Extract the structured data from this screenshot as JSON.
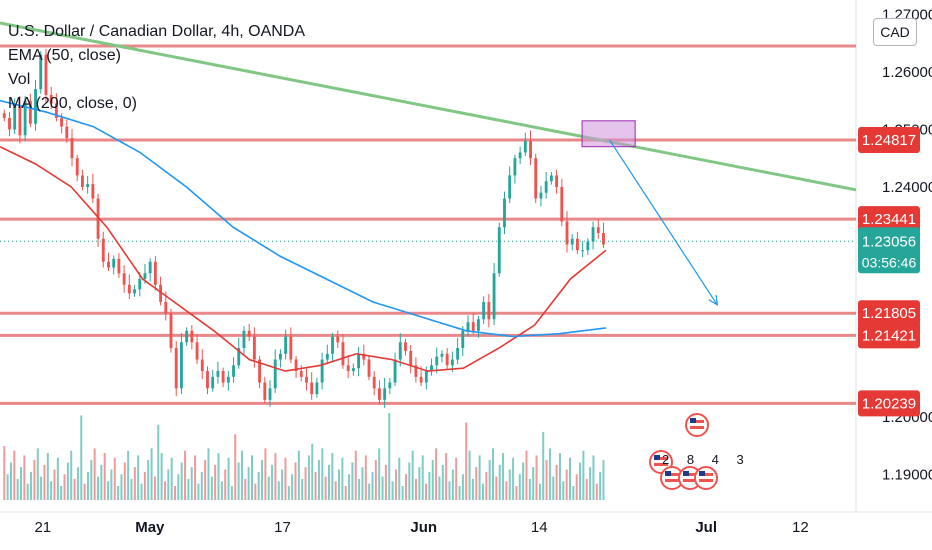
{
  "header": {
    "title": "U.S. Dollar / Canadian Dollar, 4h, OANDA",
    "ema_label": "EMA (50, close)",
    "vol_label": "Vol",
    "ma_label": "MA (200, close, 0)"
  },
  "currency_button": "CAD",
  "events_label": "2 8 4 3",
  "colors": {
    "up": "#26a69a",
    "down": "#ef5350",
    "ema": "#e53935",
    "ma": "#2196f3",
    "trendline": "#81c784",
    "level": "#e57373",
    "last_price": "#26a69a",
    "zone": "#ce93d8"
  },
  "chart_data": {
    "type": "candlestick",
    "ylim": [
      1.1835,
      1.2725
    ],
    "y_ticks": [
      "1.27000",
      "1.26000",
      "1.25000",
      "1.24000",
      "1.20000",
      "1.19000"
    ],
    "x_ticks": [
      {
        "label": "21",
        "bold": false
      },
      {
        "label": "May",
        "bold": true
      },
      {
        "label": "17",
        "bold": false
      },
      {
        "label": "Jun",
        "bold": true
      },
      {
        "label": "14",
        "bold": false
      },
      {
        "label": "Jul",
        "bold": true
      },
      {
        "label": "12",
        "bold": false
      }
    ],
    "horizontal_levels": [
      {
        "value": 1.2645,
        "label": ""
      },
      {
        "value": 1.24817,
        "label": "1.24817"
      },
      {
        "value": 1.23441,
        "label": "1.23441"
      },
      {
        "value": 1.21805,
        "label": "1.21805"
      },
      {
        "value": 1.21421,
        "label": "1.21421"
      },
      {
        "value": 1.20239,
        "label": "1.20239"
      }
    ],
    "last_price": {
      "value": 1.23056,
      "label": "1.23056",
      "countdown": "03:56:46"
    },
    "close_series": [
      1.252,
      1.25,
      1.254,
      1.249,
      1.255,
      1.251,
      1.257,
      1.263,
      1.256,
      1.2545,
      1.252,
      1.2505,
      1.2485,
      1.245,
      1.242,
      1.24,
      1.2405,
      1.238,
      1.231,
      1.227,
      1.226,
      1.2275,
      1.225,
      1.223,
      1.2215,
      1.2222,
      1.224,
      1.225,
      1.227,
      1.223,
      1.22,
      1.218,
      1.212,
      1.205,
      1.213,
      1.215,
      1.213,
      1.21,
      1.208,
      1.205,
      1.207,
      1.208,
      1.206,
      1.207,
      1.209,
      1.212,
      1.215,
      1.214,
      1.21,
      1.206,
      1.203,
      1.205,
      1.21,
      1.211,
      1.214,
      1.21,
      1.208,
      1.207,
      1.206,
      1.204,
      1.206,
      1.21,
      1.211,
      1.214,
      1.213,
      1.209,
      1.208,
      1.2085,
      1.211,
      1.21,
      1.207,
      1.205,
      1.203,
      1.205,
      1.206,
      1.21,
      1.213,
      1.2115,
      1.209,
      1.207,
      1.206,
      1.208,
      1.209,
      1.2105,
      1.211,
      1.209,
      1.21,
      1.212,
      1.215,
      1.2165,
      1.215,
      1.217,
      1.22,
      1.217,
      1.225,
      1.233,
      1.238,
      1.242,
      1.245,
      1.246,
      1.248,
      1.245,
      1.238,
      1.239,
      1.241,
      1.242,
      1.24,
      1.234,
      1.23,
      1.231,
      1.229,
      1.229,
      1.2305,
      1.233,
      1.232,
      1.23
    ],
    "ema_series": [
      1.247,
      1.244,
      1.24,
      1.233,
      1.224,
      1.2195,
      1.215,
      1.21,
      1.208,
      1.209,
      1.211,
      1.21,
      1.208,
      1.2085,
      1.212,
      1.216,
      1.224,
      1.229
    ],
    "ma_series": [
      1.255,
      1.253,
      1.2505,
      1.246,
      1.24,
      1.233,
      1.228,
      1.224,
      1.22,
      1.2175,
      1.215,
      1.214,
      1.2145,
      1.2155
    ],
    "trendline": [
      {
        "x": 0.0,
        "y": 1.2685
      },
      {
        "x": 1.0,
        "y": 1.2395
      }
    ],
    "projection_arrow": [
      {
        "x": 0.712,
        "y": 1.2482
      },
      {
        "x": 0.838,
        "y": 1.2195
      }
    ],
    "supply_zone": {
      "y_top": 1.2515,
      "y_bottom": 1.247
    }
  }
}
